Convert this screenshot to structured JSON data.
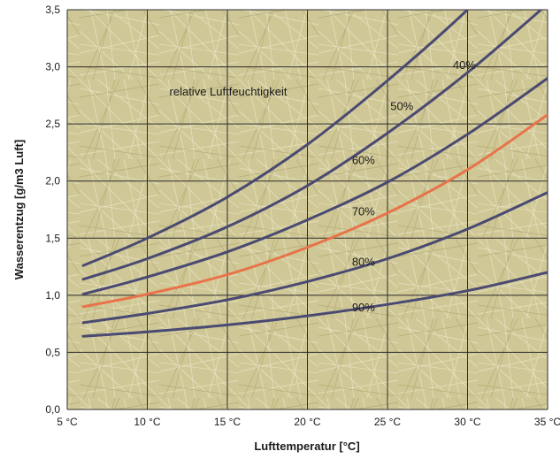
{
  "chart_data": {
    "type": "line",
    "xlabel": "Lufttemperatur [°C]",
    "ylabel": "Wasserentzug [g/m3 Luft]",
    "xlim": [
      5,
      35
    ],
    "ylim": [
      0,
      3.5
    ],
    "x_ticks": [
      5,
      10,
      15,
      20,
      25,
      30,
      35
    ],
    "x_tick_labels": [
      "5 °C",
      "10 °C",
      "15 °C",
      "20 °C",
      "25 °C",
      "30 °C",
      "35 °C"
    ],
    "y_ticks": [
      0,
      0.5,
      1.0,
      1.5,
      2.0,
      2.5,
      3.0,
      3.5
    ],
    "y_tick_labels": [
      "0,0",
      "0,5",
      "1,0",
      "1,5",
      "2,0",
      "2,5",
      "3,0",
      "3,5"
    ],
    "grid": true,
    "legend_label": "relative Luftfeuchtigkeit",
    "colors": {
      "default_line": "#4a4a72",
      "highlight_line": "#e8734a",
      "grid": "#2d2d2d",
      "background": "#cfc795"
    },
    "series": [
      {
        "name": "40%",
        "color": "#4a4a72",
        "label_at": [
          29.8,
          2.98
        ],
        "x": [
          6,
          10,
          15,
          20,
          25,
          30,
          35
        ],
        "y": [
          1.26,
          1.5,
          1.86,
          2.32,
          2.88,
          3.5,
          4.2
        ]
      },
      {
        "name": "50%",
        "color": "#4a4a72",
        "label_at": [
          25.9,
          2.62
        ],
        "x": [
          6,
          10,
          15,
          20,
          25,
          30,
          35
        ],
        "y": [
          1.14,
          1.32,
          1.6,
          1.96,
          2.42,
          2.95,
          3.55
        ]
      },
      {
        "name": "60%",
        "color": "#4a4a72",
        "label_at": [
          23.5,
          2.15
        ],
        "x": [
          6,
          10,
          15,
          20,
          25,
          30,
          35
        ],
        "y": [
          1.01,
          1.16,
          1.38,
          1.66,
          1.99,
          2.41,
          2.9
        ]
      },
      {
        "name": "70%",
        "color": "#e8734a",
        "label_at": [
          23.5,
          1.7
        ],
        "x": [
          6,
          10,
          15,
          20,
          25,
          30,
          35
        ],
        "y": [
          0.9,
          1.01,
          1.18,
          1.42,
          1.72,
          2.1,
          2.58
        ]
      },
      {
        "name": "80%",
        "color": "#4a4a72",
        "label_at": [
          23.5,
          1.26
        ],
        "x": [
          6,
          10,
          15,
          20,
          25,
          30,
          35
        ],
        "y": [
          0.76,
          0.84,
          0.96,
          1.12,
          1.32,
          1.58,
          1.9
        ]
      },
      {
        "name": "90%",
        "color": "#4a4a72",
        "label_at": [
          23.5,
          0.86
        ],
        "x": [
          6,
          10,
          15,
          20,
          25,
          30,
          35
        ],
        "y": [
          0.64,
          0.68,
          0.74,
          0.82,
          0.92,
          1.04,
          1.2
        ]
      }
    ]
  }
}
